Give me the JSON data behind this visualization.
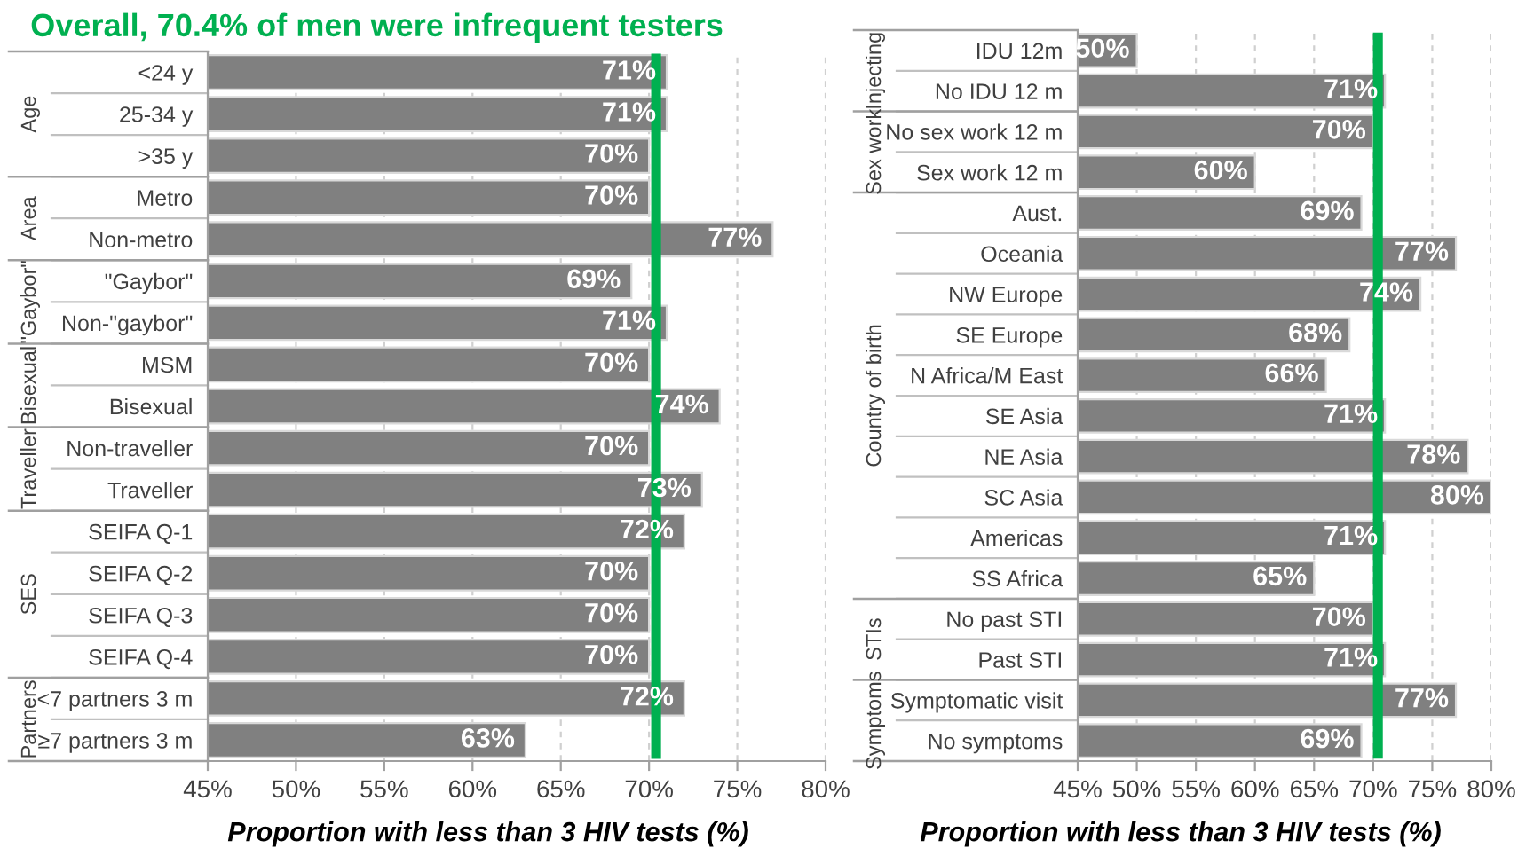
{
  "chart_data": [
    {
      "type": "bar",
      "orientation": "horizontal",
      "title": "Overall, 70.4% of men were infrequent testers",
      "xlabel": "Proportion with less than 3 HIV tests (%)",
      "categories": [
        "<24 y",
        "25-34 y",
        ">35 y",
        "Metro",
        "Non-metro",
        "\"Gaybor\"",
        "Non-\"gaybor\"",
        "MSM",
        "Bisexual",
        "Non-traveller",
        "Traveller",
        "SEIFA Q-1",
        "SEIFA Q-2",
        "SEIFA Q-3",
        "SEIFA Q-4",
        "<7 partners 3 m",
        "≥7 partners 3 m"
      ],
      "values": [
        71,
        71,
        70,
        70,
        77,
        69,
        71,
        70,
        74,
        70,
        73,
        72,
        70,
        70,
        70,
        72,
        63
      ],
      "value_labels": [
        "71%",
        "71%",
        "70%",
        "70%",
        "77%",
        "69%",
        "71%",
        "70%",
        "74%",
        "70%",
        "73%",
        "72%",
        "70%",
        "70%",
        "70%",
        "72%",
        "63%"
      ],
      "color": "#808080",
      "xlim": [
        45,
        80
      ],
      "xticks": [
        {
          "value": 45,
          "label": "45%"
        },
        {
          "value": 50,
          "label": "50%"
        },
        {
          "value": 55,
          "label": "55%"
        },
        {
          "value": 60,
          "label": "60%"
        },
        {
          "value": 65,
          "label": "65%"
        },
        {
          "value": 70,
          "label": "70%"
        },
        {
          "value": 75,
          "label": "75%"
        },
        {
          "value": 80,
          "label": "80%"
        }
      ],
      "grid": "x",
      "ref_lines": [
        {
          "axis": "x",
          "value": 70.4,
          "color": "#00b050"
        }
      ],
      "annotations": [
        "Age",
        "Area",
        "\"Gaybor\"",
        "Bisexual",
        "Traveller",
        "SES",
        "Partners"
      ]
    },
    {
      "type": "bar",
      "orientation": "horizontal",
      "xlabel": "Proportion with less than 3 HIV tests (%)",
      "categories": [
        "IDU 12m",
        "No IDU 12 m",
        "No sex work 12 m",
        "Sex work 12 m",
        "Aust.",
        "Oceania",
        "NW Europe",
        "SE Europe",
        "N Africa/M East",
        "SE Asia",
        "NE Asia",
        "SC Asia",
        "Americas",
        "SS Africa",
        "No past STI",
        "Past STI",
        "Symptomatic visit",
        "No symptoms"
      ],
      "values": [
        50,
        71,
        70,
        60,
        69,
        77,
        74,
        68,
        66,
        71,
        78,
        80,
        71,
        65,
        70,
        71,
        77,
        69
      ],
      "value_labels": [
        "50%",
        "71%",
        "70%",
        "60%",
        "69%",
        "77%",
        "74%",
        "68%",
        "66%",
        "71%",
        "78%",
        "80%",
        "71%",
        "65%",
        "70%",
        "71%",
        "77%",
        "69%"
      ],
      "color": "#808080",
      "xlim": [
        45,
        80
      ],
      "xticks": [
        {
          "value": 45,
          "label": "45%"
        },
        {
          "value": 50,
          "label": "50%"
        },
        {
          "value": 55,
          "label": "55%"
        },
        {
          "value": 60,
          "label": "60%"
        },
        {
          "value": 65,
          "label": "65%"
        },
        {
          "value": 70,
          "label": "70%"
        },
        {
          "value": 75,
          "label": "75%"
        },
        {
          "value": 80,
          "label": "80%"
        }
      ],
      "grid": "x",
      "ref_lines": [
        {
          "axis": "x",
          "value": 70.4,
          "color": "#00b050"
        }
      ],
      "annotations": [
        "Injecting",
        "Sex work",
        "Country of birth",
        "STIs",
        "Symptoms"
      ]
    }
  ]
}
